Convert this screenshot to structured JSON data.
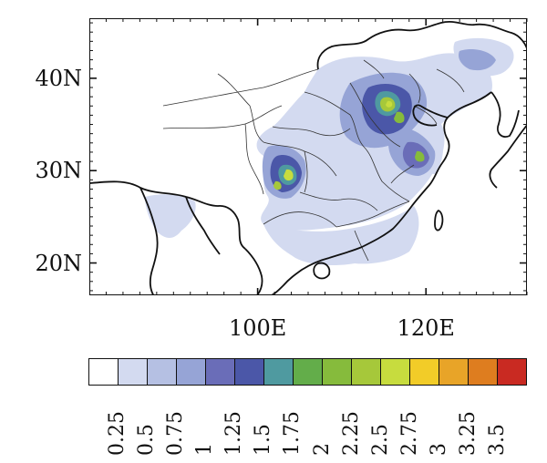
{
  "map": {
    "lat_labels": [
      "40N",
      "30N",
      "20N"
    ],
    "lon_labels": [
      "100E",
      "120E"
    ],
    "lat_values": [
      40,
      30,
      20
    ],
    "lon_values": [
      100,
      120
    ],
    "extent": {
      "lon_min": 80,
      "lon_max": 132,
      "lat_min": 16.5,
      "lat_max": 46.5
    }
  },
  "colorbar": {
    "tick_labels": [
      "0.25",
      "0.5",
      "0.75",
      "1",
      "1.25",
      "1.5",
      "1.75",
      "2",
      "2.25",
      "2.5",
      "2.75",
      "3",
      "3.25",
      "3.5"
    ],
    "colors": [
      "#ffffff",
      "#d3daf0",
      "#b5c0e3",
      "#96a4d6",
      "#6a6db8",
      "#4b57a8",
      "#4f9aa0",
      "#63ad4a",
      "#86bb3c",
      "#a6c83a",
      "#c7dc3e",
      "#f2cc28",
      "#e8a428",
      "#de7d1f",
      "#c92a22"
    ]
  },
  "colors": {
    "land": "#d3daf0",
    "ocean": "#ffffff",
    "border": "#222222"
  }
}
